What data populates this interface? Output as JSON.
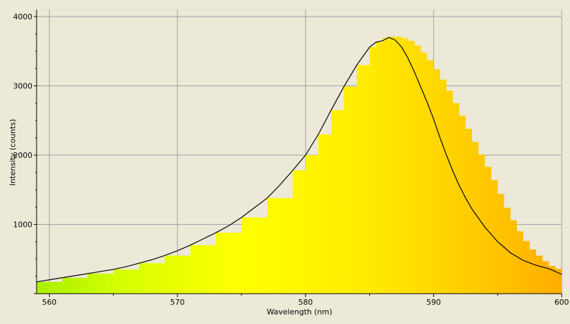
{
  "chart_data": {
    "type": "area",
    "xlabel": "Wavelength (nm)",
    "ylabel": "Intensity (counts)",
    "xlim": [
      559,
      600
    ],
    "ylim": [
      0,
      4100
    ],
    "x_ticks": [
      560,
      570,
      580,
      590,
      600
    ],
    "y_ticks": [
      1000,
      2000,
      3000,
      4000
    ],
    "grid": true,
    "fill": "wavelength-color gradient",
    "gradient_colors": [
      {
        "at": 559,
        "color": "#a8f000"
      },
      {
        "at": 566,
        "color": "#d8ff00"
      },
      {
        "at": 575,
        "color": "#ffff00"
      },
      {
        "at": 584,
        "color": "#ffee00"
      },
      {
        "at": 592,
        "color": "#ffd000"
      },
      {
        "at": 600,
        "color": "#ffae00"
      }
    ],
    "series": [
      {
        "style": "filled-steps",
        "x": [
          559,
          561,
          563,
          565,
          567,
          569,
          571,
          573,
          575,
          577,
          579,
          580,
          581,
          582,
          583,
          584,
          585,
          585.5,
          586,
          586.5,
          587,
          587.5,
          588,
          588.5,
          589,
          589.5,
          590,
          590.5,
          591,
          591.5,
          592,
          592.5,
          593,
          593.5,
          594,
          594.5,
          595,
          595.5,
          596,
          596.5,
          597,
          597.5,
          598,
          598.5,
          599,
          599.5,
          600
        ],
        "values": [
          170,
          230,
          290,
          350,
          440,
          550,
          700,
          880,
          1100,
          1380,
          1780,
          2000,
          2300,
          2650,
          2990,
          3300,
          3560,
          3630,
          3690,
          3710,
          3710,
          3690,
          3650,
          3580,
          3480,
          3370,
          3240,
          3090,
          2930,
          2750,
          2570,
          2380,
          2190,
          2010,
          1830,
          1640,
          1440,
          1240,
          1060,
          900,
          760,
          640,
          550,
          470,
          400,
          360,
          330
        ]
      },
      {
        "style": "line",
        "color": "#000000",
        "x": [
          559,
          560,
          561,
          562,
          563,
          564,
          565,
          566,
          567,
          568,
          569,
          570,
          571,
          572,
          573,
          574,
          575,
          576,
          577,
          578,
          579,
          580,
          581,
          582,
          583,
          584,
          585,
          585.5,
          586,
          586.5,
          587,
          587.5,
          588,
          588.5,
          589,
          589.5,
          590,
          590.5,
          591,
          591.5,
          592,
          592.5,
          593,
          594,
          595,
          596,
          597,
          598,
          599,
          600
        ],
        "values": [
          170,
          200,
          230,
          260,
          290,
          320,
          350,
          390,
          440,
          490,
          550,
          620,
          700,
          790,
          880,
          980,
          1100,
          1240,
          1380,
          1570,
          1780,
          2000,
          2300,
          2650,
          2990,
          3300,
          3560,
          3630,
          3650,
          3700,
          3660,
          3560,
          3400,
          3200,
          2980,
          2760,
          2520,
          2250,
          2000,
          1770,
          1560,
          1380,
          1220,
          960,
          750,
          590,
          480,
          410,
          360,
          280
        ]
      }
    ]
  }
}
